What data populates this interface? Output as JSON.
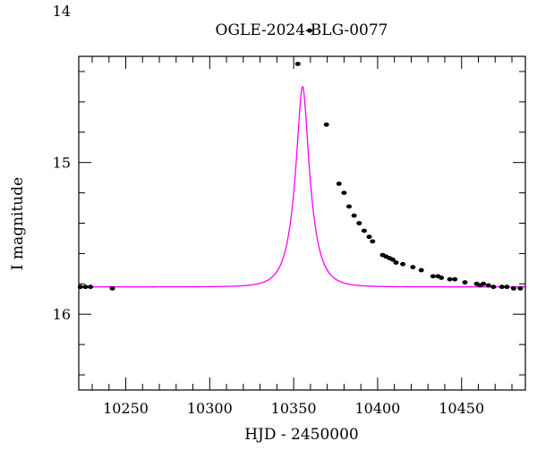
{
  "chart_data": {
    "type": "scatter",
    "title": "OGLE-2024-BLG-0077",
    "xlabel": "HJD - 2450000",
    "ylabel": "I magnitude",
    "xlim": [
      10222,
      10488
    ],
    "ylim": [
      16.5,
      14.3
    ],
    "y_inverted": true,
    "x_ticks": [
      10250,
      10300,
      10350,
      10400,
      10450
    ],
    "y_ticks": [
      14,
      15,
      16
    ],
    "x_minor_step": 10,
    "y_minor_step": 0.2,
    "grid": false,
    "colors": {
      "model": "#ff00ff",
      "points": "#000000",
      "axes": "#000000"
    },
    "model": {
      "name": "",
      "description": "",
      "baseline_mag": 15.82,
      "t0": 10355.3,
      "peak_mag": 14.5,
      "tE": 9.2
    },
    "points": [
      {
        "x": 10223,
        "y": 15.82
      },
      {
        "x": 10226,
        "y": 15.82
      },
      {
        "x": 10229,
        "y": 15.82
      },
      {
        "x": 10242,
        "y": 15.83
      },
      {
        "x": 10352.5,
        "y": 14.35
      },
      {
        "x": 10359.5,
        "y": 14.13
      },
      {
        "x": 10369.5,
        "y": 14.75
      },
      {
        "x": 10377,
        "y": 15.14
      },
      {
        "x": 10380,
        "y": 15.2
      },
      {
        "x": 10383,
        "y": 15.29
      },
      {
        "x": 10386,
        "y": 15.35
      },
      {
        "x": 10389,
        "y": 15.4
      },
      {
        "x": 10392,
        "y": 15.45
      },
      {
        "x": 10395,
        "y": 15.49
      },
      {
        "x": 10397,
        "y": 15.52
      },
      {
        "x": 10403,
        "y": 15.61
      },
      {
        "x": 10405,
        "y": 15.62
      },
      {
        "x": 10407,
        "y": 15.63
      },
      {
        "x": 10409,
        "y": 15.64
      },
      {
        "x": 10411,
        "y": 15.66
      },
      {
        "x": 10415,
        "y": 15.67
      },
      {
        "x": 10421,
        "y": 15.69
      },
      {
        "x": 10426,
        "y": 15.71
      },
      {
        "x": 10433,
        "y": 15.75
      },
      {
        "x": 10436,
        "y": 15.75
      },
      {
        "x": 10438,
        "y": 15.76
      },
      {
        "x": 10443,
        "y": 15.77
      },
      {
        "x": 10446,
        "y": 15.77
      },
      {
        "x": 10452,
        "y": 15.79
      },
      {
        "x": 10459,
        "y": 15.8
      },
      {
        "x": 10461,
        "y": 15.81
      },
      {
        "x": 10463,
        "y": 15.8
      },
      {
        "x": 10466,
        "y": 15.81
      },
      {
        "x": 10469,
        "y": 15.82
      },
      {
        "x": 10474,
        "y": 15.82
      },
      {
        "x": 10477,
        "y": 15.82
      },
      {
        "x": 10481,
        "y": 15.83
      },
      {
        "x": 10485,
        "y": 15.83
      }
    ]
  }
}
